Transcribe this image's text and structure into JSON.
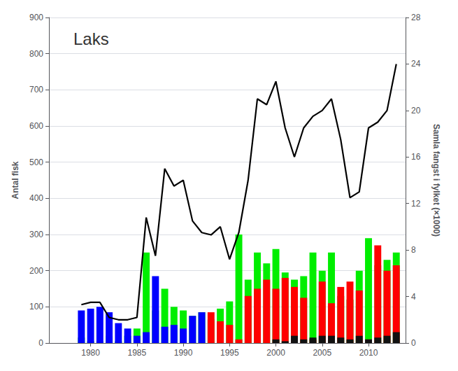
{
  "chart_data": {
    "type": "bar",
    "title": "Laks",
    "ylabel": "Antal fisk",
    "y2label": "Samla fangst i fylket (×1000)",
    "stacked": true,
    "grid": true,
    "xlim": [
      1975.5,
      2014
    ],
    "xticks": [
      1980,
      1985,
      1990,
      1995,
      2000,
      2005,
      2010
    ],
    "ylim": [
      0,
      900
    ],
    "yticks": [
      0,
      100,
      200,
      300,
      400,
      500,
      600,
      700,
      800,
      900
    ],
    "y2lim": [
      0,
      28
    ],
    "y2ticks": [
      0,
      4,
      8,
      12,
      16,
      20,
      24,
      28
    ],
    "x": [
      1979,
      1980,
      1981,
      1982,
      1983,
      1984,
      1985,
      1986,
      1987,
      1988,
      1989,
      1990,
      1991,
      1992,
      1993,
      1994,
      1995,
      1996,
      1997,
      1998,
      1999,
      2000,
      2001,
      2002,
      2003,
      2004,
      2005,
      2006,
      2007,
      2008,
      2009,
      2010,
      2011,
      2012,
      2013
    ],
    "series": [
      {
        "type": "bar",
        "color": "#00ee00",
        "values": [
          15,
          5,
          5,
          20,
          5,
          20,
          40,
          250,
          90,
          150,
          100,
          90,
          75,
          85,
          65,
          95,
          115,
          300,
          175,
          250,
          220,
          260,
          195,
          175,
          185,
          250,
          200,
          250,
          130,
          120,
          200,
          290,
          215,
          230,
          250
        ]
      },
      {
        "type": "bar",
        "colors": [
          "#0000ff",
          "#0000ff",
          "#0000ff",
          "#0000ff",
          "#0000ff",
          "#0000ff",
          "#0000ff",
          "#0000ff",
          "#0000ff",
          "#0000ff",
          "#0000ff",
          "#0000ff",
          "#0000ff",
          "#0000ff",
          "#ff0000",
          "#ff0000",
          "#ff0000",
          "#ff0000",
          "#ff0000",
          "#ff0000",
          "#ff0000",
          "#ff0000",
          "#ff0000",
          "#ff0000",
          "#ff0000",
          "#ff0000",
          "#ff0000",
          "#ff0000",
          "#ff0000",
          "#ff0000",
          "#ff0000",
          "#ff0000",
          "#ff0000",
          "#ff0000",
          "#ff0000"
        ],
        "values": [
          90,
          95,
          100,
          85,
          55,
          40,
          20,
          30,
          185,
          45,
          50,
          40,
          75,
          85,
          85,
          60,
          50,
          10,
          130,
          150,
          175,
          150,
          180,
          155,
          125,
          10,
          170,
          110,
          155,
          170,
          145,
          10,
          270,
          200,
          215
        ]
      },
      {
        "type": "bar",
        "color": "#111111",
        "values": [
          0,
          0,
          0,
          0,
          0,
          0,
          0,
          0,
          0,
          0,
          0,
          0,
          0,
          0,
          0,
          0,
          0,
          0,
          0,
          0,
          0,
          10,
          5,
          20,
          10,
          15,
          20,
          20,
          15,
          10,
          20,
          10,
          15,
          20,
          30
        ]
      },
      {
        "type": "line",
        "axis": "y2",
        "color": "#000000",
        "values": [
          3.3,
          3.5,
          3.5,
          2.2,
          2.0,
          2.0,
          2.2,
          10.8,
          7.5,
          15.0,
          13.5,
          14.0,
          10.5,
          9.5,
          9.3,
          10.0,
          7.2,
          9.5,
          14.0,
          21.0,
          20.5,
          22.5,
          18.5,
          16.0,
          18.5,
          19.5,
          20.0,
          21.0,
          17.5,
          12.5,
          13.0,
          18.5,
          19.0,
          20.0,
          24.0
        ]
      }
    ]
  }
}
